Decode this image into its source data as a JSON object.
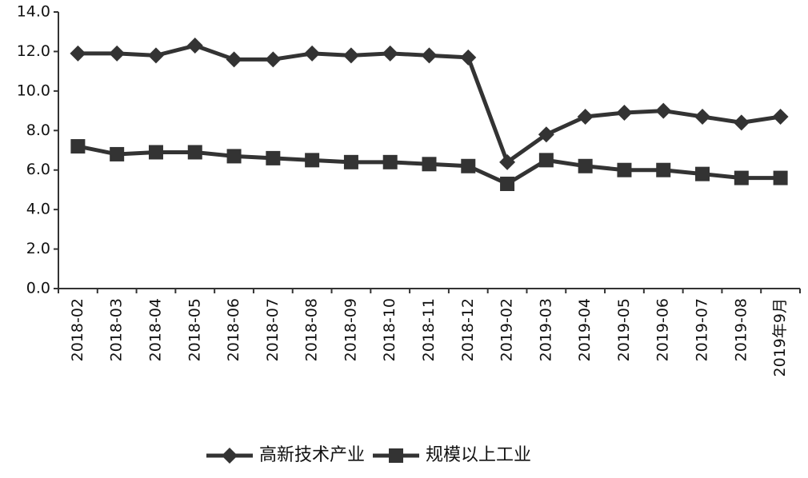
{
  "chart_data": {
    "type": "line",
    "categories": [
      "2018-02",
      "2018-03",
      "2018-04",
      "2018-05",
      "2018-06",
      "2018-07",
      "2018-08",
      "2018-09",
      "2018-10",
      "2018-11",
      "2018-12",
      "2019-02",
      "2019-03",
      "2019-04",
      "2019-05",
      "2019-06",
      "2019-07",
      "2019-08",
      "2019年9月"
    ],
    "series": [
      {
        "name": "高新技术产业",
        "color": "#333333",
        "marker": "diamond",
        "values": [
          11.9,
          11.9,
          11.8,
          12.3,
          11.6,
          11.6,
          11.9,
          11.8,
          11.9,
          11.8,
          11.7,
          6.4,
          7.8,
          8.7,
          8.9,
          9.0,
          8.7,
          8.4,
          8.7
        ]
      },
      {
        "name": "规模以上工业",
        "color": "#333333",
        "marker": "square",
        "values": [
          7.2,
          6.8,
          6.9,
          6.9,
          6.7,
          6.6,
          6.5,
          6.4,
          6.4,
          6.3,
          6.2,
          5.3,
          6.5,
          6.2,
          6.0,
          6.0,
          5.8,
          5.6,
          5.6
        ]
      }
    ],
    "ylim": [
      0,
      14
    ],
    "yticks": [
      {
        "value": 0,
        "label": "0.0"
      },
      {
        "value": 2,
        "label": "2.0"
      },
      {
        "value": 4,
        "label": "4.0"
      },
      {
        "value": 6,
        "label": "6.0"
      },
      {
        "value": 8,
        "label": "8.0"
      },
      {
        "value": 10,
        "label": "10.0"
      },
      {
        "value": 12,
        "label": "12.0"
      },
      {
        "value": 14,
        "label": "14.0"
      }
    ],
    "grid": false,
    "legend": "bottom"
  }
}
